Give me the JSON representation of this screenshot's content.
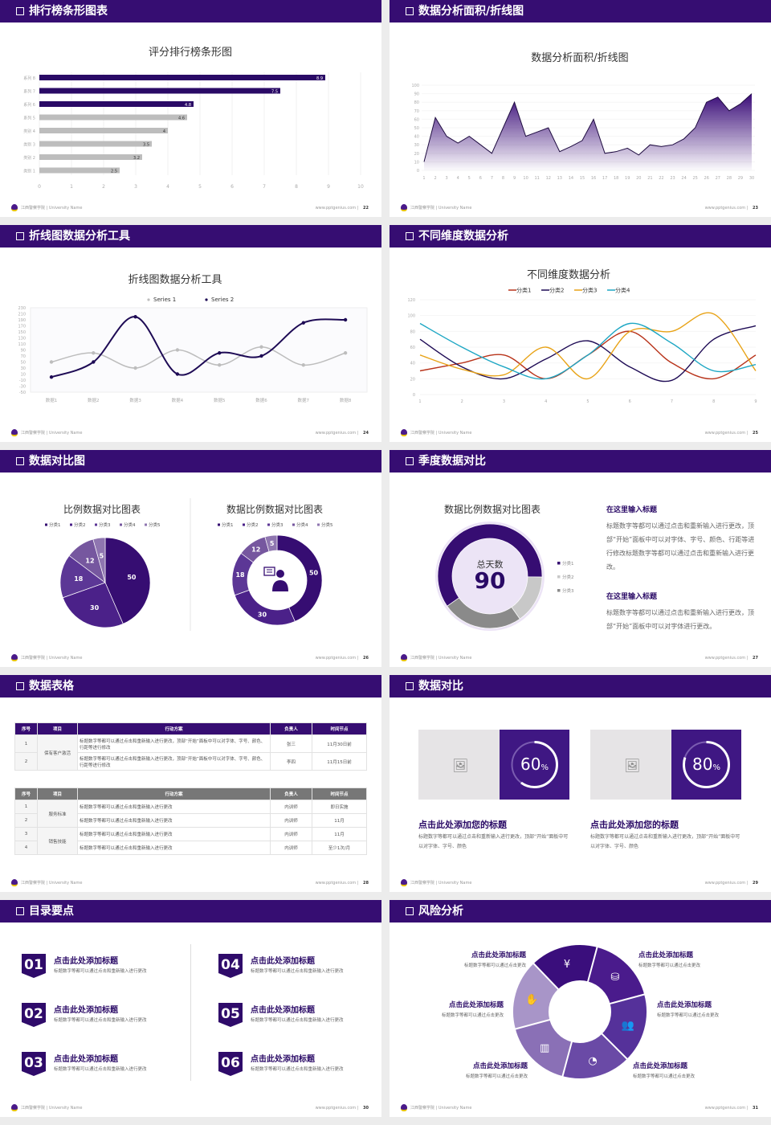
{
  "footer": {
    "org": "江西警察学院 | University Name",
    "site": "www.pptgenius.com"
  },
  "colors": {
    "primary": "#360d72",
    "gray": "#bdbdbd"
  },
  "slides": [
    {
      "title": "排行榜条形图表",
      "page": "22"
    },
    {
      "title": "数据分析面积/折线图",
      "page": "23"
    },
    {
      "title": "折线图数据分析工具",
      "page": "24"
    },
    {
      "title": "不同维度数据分析",
      "page": "25"
    },
    {
      "title": "数据对比图",
      "page": "26"
    },
    {
      "title": "季度数据对比",
      "page": "27"
    },
    {
      "title": "数据表格",
      "page": "28"
    },
    {
      "title": "数据对比",
      "page": "29"
    },
    {
      "title": "目录要点",
      "page": "30"
    },
    {
      "title": "风险分析",
      "page": "31"
    }
  ],
  "chart_data": [
    {
      "type": "bar",
      "title": "评分排行榜条形图",
      "orientation": "horizontal",
      "categories": [
        "系列 8",
        "系列 7",
        "系列 6",
        "系列 5",
        "类别 4",
        "类别 3",
        "类别 2",
        "类别 1"
      ],
      "values": [
        8.9,
        7.5,
        4.8,
        4.6,
        4,
        3.5,
        3.2,
        2.5
      ],
      "highlight_colors": [
        "#2a0a66",
        "#2a0a66",
        "#2a0a66",
        "#bdbdbd",
        "#bdbdbd",
        "#bdbdbd",
        "#bdbdbd",
        "#bdbdbd"
      ],
      "xlim": [
        0,
        10
      ],
      "xticks": [
        0,
        1,
        2,
        3,
        4,
        5,
        6,
        7,
        8,
        9,
        10
      ],
      "grid": true
    },
    {
      "type": "area",
      "title": "数据分析面积/折线图",
      "x": [
        1,
        2,
        3,
        4,
        5,
        6,
        7,
        8,
        9,
        10,
        11,
        12,
        13,
        14,
        15,
        16,
        17,
        18,
        19,
        20,
        21,
        22,
        23,
        24,
        25,
        26,
        27,
        28,
        29,
        30
      ],
      "values": [
        10,
        62,
        40,
        32,
        40,
        30,
        20,
        50,
        80,
        40,
        45,
        50,
        22,
        28,
        35,
        60,
        20,
        22,
        26,
        18,
        30,
        28,
        30,
        37,
        50,
        80,
        86,
        70,
        78,
        90
      ],
      "ylim": [
        0,
        100
      ],
      "yticks": [
        0,
        10,
        20,
        30,
        40,
        50,
        60,
        70,
        80,
        90,
        100
      ]
    },
    {
      "type": "line",
      "title": "折线图数据分析工具",
      "categories": [
        "数据1",
        "数据2",
        "数据3",
        "数据4",
        "数据5",
        "数据6",
        "数据7",
        "数据8"
      ],
      "series": [
        {
          "name": "Series 1",
          "color": "#bdbdbd",
          "values": [
            50,
            80,
            30,
            90,
            40,
            100,
            40,
            80
          ]
        },
        {
          "name": "Series 2",
          "color": "#1e0b55",
          "values": [
            0,
            50,
            200,
            10,
            80,
            70,
            180,
            190
          ]
        }
      ],
      "ylim": [
        -50,
        230
      ],
      "yticks": [
        230,
        210,
        190,
        170,
        150,
        130,
        110,
        90,
        70,
        50,
        30,
        10,
        -10,
        -30,
        -50
      ],
      "legend": "top"
    },
    {
      "type": "line",
      "title": "不同维度数据分析",
      "x": [
        1,
        2,
        3,
        4,
        5,
        6,
        7,
        8,
        9
      ],
      "series": [
        {
          "name": "分类1",
          "color": "#b8331a",
          "values": [
            30,
            40,
            50,
            20,
            50,
            80,
            40,
            20,
            50
          ]
        },
        {
          "name": "分类2",
          "color": "#1e0b55",
          "values": [
            70,
            35,
            20,
            45,
            68,
            35,
            18,
            70,
            87
          ]
        },
        {
          "name": "分类3",
          "color": "#e8a317",
          "values": [
            50,
            32,
            25,
            60,
            20,
            80,
            80,
            102,
            30
          ]
        },
        {
          "name": "分类4",
          "color": "#1ea7c4",
          "values": [
            90,
            60,
            35,
            20,
            50,
            90,
            65,
            30,
            38
          ]
        }
      ],
      "ylim": [
        0,
        120
      ],
      "yticks": [
        0,
        20,
        40,
        60,
        80,
        100,
        120
      ],
      "legend": "top"
    },
    {
      "type": "pie",
      "title": "比例数据对比图表",
      "categories": [
        "分类1",
        "分类2",
        "分类3",
        "分类4",
        "分类5"
      ],
      "values": [
        50,
        30,
        18,
        12,
        5
      ],
      "colors": [
        "#360d72",
        "#4b2189",
        "#5c3796",
        "#76579f",
        "#8f76b0"
      ],
      "legend": "top"
    },
    {
      "type": "pie",
      "title": "数据比例数据对比图表",
      "donut": true,
      "categories": [
        "分类1",
        "分类2",
        "分类3",
        "分类4",
        "分类5"
      ],
      "values": [
        50,
        30,
        18,
        12,
        5
      ],
      "colors": [
        "#360d72",
        "#4b2189",
        "#5c3796",
        "#76579f",
        "#8f76b0"
      ],
      "legend": "top"
    },
    {
      "type": "pie",
      "title": "数据比例数据对比图表",
      "donut": true,
      "categories": [
        "分类1",
        "分类2",
        "分类3"
      ],
      "values": [
        60,
        15,
        25
      ],
      "colors": [
        "#360d72",
        "#c8c8c8",
        "#8a8a8a"
      ],
      "legend": "right",
      "center_label": "总天数",
      "center_value": "90"
    }
  ],
  "s6": {
    "blocks": [
      {
        "title": "在这里输入标题",
        "text": "标题数字等都可以通过点击和重新输入进行更改，顶部“开始”面板中可以对字体、字号、颜色、行距等进行修改标题数字等都可以通过点击和重新输入进行更改。"
      },
      {
        "title": "在这里输入标题",
        "text": "标题数字等都可以通过点击和重新输入进行更改，顶部“开始”面板中可以对字体进行更改。"
      }
    ]
  },
  "s7": {
    "headers": [
      "序号",
      "项目",
      "行动方案",
      "负责人",
      "时间节点"
    ],
    "t1": {
      "group": "保有客户激活",
      "rows": [
        [
          "1",
          "标题数字等都可以通过点击和重新输入进行更改，顶部“开始”面板中可以对字体、字号、颜色、行距等进行修改",
          "张三",
          "11月30日前"
        ],
        [
          "2",
          "标题数字等都可以通过点击和重新输入进行更改，顶部“开始”面板中可以对字体、字号、颜色、行距等进行修改",
          "李四",
          "11月15日前"
        ]
      ]
    },
    "t2": {
      "groups": [
        "服务标准",
        "销售技能"
      ],
      "rows": [
        [
          "1",
          "标题数字等都可以通过点击和重新输入进行更改",
          "内训师",
          "即日实施"
        ],
        [
          "2",
          "标题数字等都可以通过点击和重新输入进行更改",
          "内训师",
          "11月"
        ],
        [
          "3",
          "标题数字等都可以通过点击和重新输入进行更改",
          "内训师",
          "11月"
        ],
        [
          "4",
          "标题数字等都可以通过点击和重新输入进行更改",
          "内训师",
          "至少1次/月"
        ]
      ]
    }
  },
  "s8": {
    "items": [
      {
        "value": 60,
        "label": "60",
        "unit": "%",
        "title": "点击此处添加您的标题",
        "text": "标题数字等都可以通过点击和重新输入进行更改，顶部“开始”面板中可以对字体、字号、颜色"
      },
      {
        "value": 80,
        "label": "80",
        "unit": "%",
        "title": "点击此处添加您的标题",
        "text": "标题数字等都可以通过点击和重新输入进行更改，顶部“开始”面板中可以对字体、字号、颜色"
      }
    ]
  },
  "s9": {
    "items": [
      {
        "num": "01",
        "title": "点击此处添加标题",
        "text": "标题数字等都可以通过点击和重新输入进行更改"
      },
      {
        "num": "02",
        "title": "点击此处添加标题",
        "text": "标题数字等都可以通过点击和重新输入进行更改"
      },
      {
        "num": "03",
        "title": "点击此处添加标题",
        "text": "标题数字等都可以通过点击和重新输入进行更改"
      },
      {
        "num": "04",
        "title": "点击此处添加标题",
        "text": "标题数字等都可以通过点击和重新输入进行更改"
      },
      {
        "num": "05",
        "title": "点击此处添加标题",
        "text": "标题数字等都可以通过点击和重新输入进行更改"
      },
      {
        "num": "06",
        "title": "点击此处添加标题",
        "text": "标题数字等都可以通过点击和重新输入进行更改"
      }
    ]
  },
  "s10": {
    "items": [
      {
        "title": "点击此处添加标题",
        "text": "标题数字等都可以通过点击更改",
        "icon": "money-bag-icon"
      },
      {
        "title": "点击此处添加标题",
        "text": "标题数字等都可以通过点击更改",
        "icon": "coins-icon"
      },
      {
        "title": "点击此处添加标题",
        "text": "标题数字等都可以通过点击更改",
        "icon": "users-icon"
      },
      {
        "title": "点击此处添加标题",
        "text": "标题数字等都可以通过点击更改",
        "icon": "pie-chart-icon"
      },
      {
        "title": "点击此处添加标题",
        "text": "标题数字等都可以通过点击更改",
        "icon": "building-icon"
      },
      {
        "title": "点击此处添加标题",
        "text": "标题数字等都可以通过点击更改",
        "icon": "hand-money-icon"
      }
    ]
  }
}
